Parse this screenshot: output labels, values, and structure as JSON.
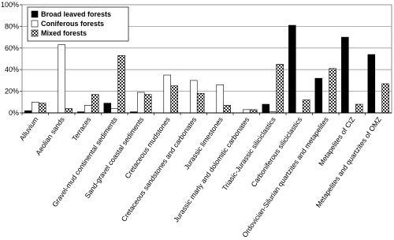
{
  "chart_data": {
    "type": "bar",
    "categories": [
      "Alluvium",
      "Aeolian sands",
      "Terraces",
      "Gravel-mud continental sediments",
      "Sand-gravel coastal sediments",
      "Cretaceous mudstones",
      "Cretaceous sandstones and carbonates",
      "Jurassic limestones",
      "Jurassic marly and dolomitic carbonates",
      "Triasic-Jurassic siliciclastics",
      "Carboniferous siliciclastics",
      "Ordovician-Silurian quartzites and metapelites",
      "Metapelites of CIZ",
      "Metapelites and quartzites of OMZ"
    ],
    "series": [
      {
        "name": "Broad leaved forests",
        "color": "#000000",
        "values": [
          2,
          0,
          1,
          9,
          1,
          0,
          0,
          0,
          0,
          8,
          81,
          32,
          70,
          54
        ]
      },
      {
        "name": "Coniferous forests",
        "color": "#ffffff",
        "values": [
          10,
          63,
          7,
          4,
          19,
          35,
          30,
          26,
          3,
          1,
          0,
          0,
          0,
          0
        ]
      },
      {
        "name": "Mixed forests",
        "color": "#333333",
        "pattern": "checkerboard",
        "values": [
          9,
          4,
          17,
          53,
          17,
          25,
          18,
          7,
          3,
          45,
          12,
          41,
          8,
          27
        ]
      }
    ],
    "ylim": [
      0,
      100
    ],
    "yticks": [
      {
        "value": 0,
        "label": "0%"
      },
      {
        "value": 20,
        "label": "20%"
      },
      {
        "value": 40,
        "label": "40%"
      },
      {
        "value": 60,
        "label": "60%"
      },
      {
        "value": 80,
        "label": "80%"
      },
      {
        "value": 100,
        "label": "100%"
      }
    ],
    "grid": true,
    "legend": "top-left"
  }
}
